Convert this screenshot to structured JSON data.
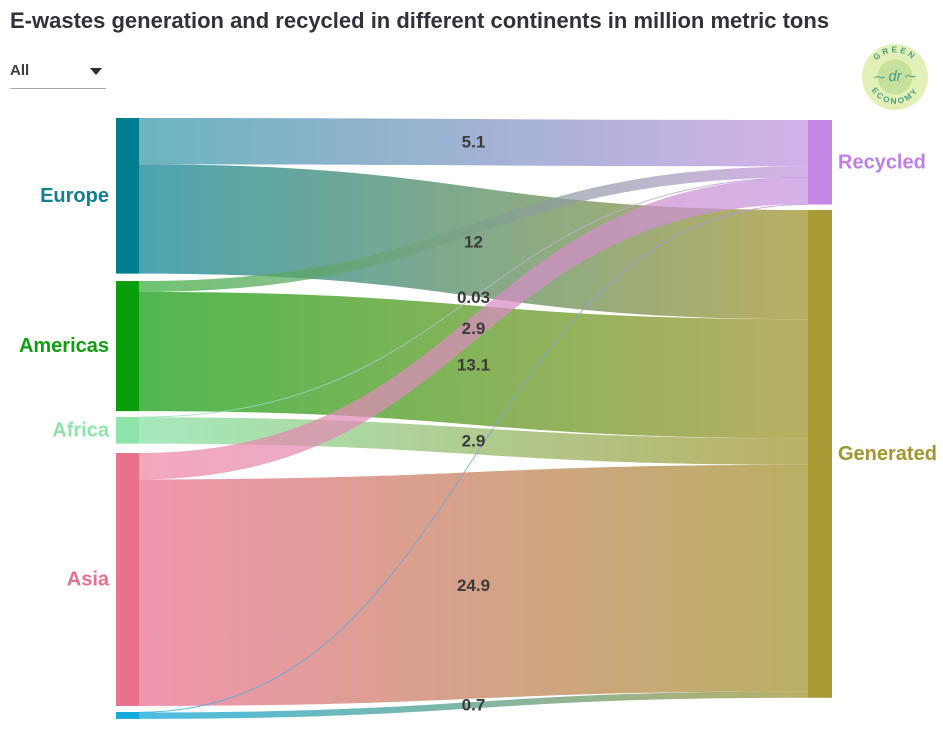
{
  "title": "E-wastes generation and recycled in different continents in million metric tons",
  "filter": {
    "selected": "All"
  },
  "logo": {
    "top_text": "GREEN",
    "bottom_text": "ECONOMY",
    "center_text": "dr"
  },
  "colors": {
    "title_text": "#31313a",
    "flow_label_text": "#3b3b3b",
    "background": "#ffffff"
  },
  "chart_data": {
    "type": "sankey",
    "title": "E-wastes generation and recycled in different continents in million metric tons",
    "unit": "million metric tons",
    "nodes": [
      {
        "id": "europe",
        "label": "Europe",
        "side": "left",
        "color": "#007d8e",
        "flow_color": "#3397a5",
        "label_color": "#14808f"
      },
      {
        "id": "americas",
        "label": "Americas",
        "side": "left",
        "color": "#0a9e0a",
        "flow_color": "#38ad38",
        "label_color": "#0f9e0f"
      },
      {
        "id": "africa",
        "label": "Africa",
        "side": "left",
        "color": "#8ee4a8",
        "flow_color": "#9ae6b4",
        "label_color": "#8ee4a8"
      },
      {
        "id": "asia",
        "label": "Asia",
        "side": "left",
        "color": "#e8718e",
        "flow_color": "#ee86a2",
        "label_color": "#e8718e"
      },
      {
        "id": "oceania",
        "label": "",
        "side": "left",
        "color": "#14aadc",
        "flow_color": "#30b4e0",
        "label_color": "#14aadc"
      },
      {
        "id": "recycled",
        "label": "Recycled",
        "side": "right",
        "color": "#c688e6",
        "flow_color": "#c493e0",
        "label_color": "#bf7fe8"
      },
      {
        "id": "generated",
        "label": "Generated",
        "side": "right",
        "color": "#a89b35",
        "flow_color": "#b0a44e",
        "label_color": "#a3962e"
      }
    ],
    "links": [
      {
        "source": "europe",
        "target": "recycled",
        "value": 5.1,
        "label": "5.1"
      },
      {
        "source": "europe",
        "target": "generated",
        "value": 12,
        "label": "12"
      },
      {
        "source": "americas",
        "target": "recycled",
        "value": 1.2,
        "label": ""
      },
      {
        "source": "americas",
        "target": "generated",
        "value": 13.1,
        "label": "13.1"
      },
      {
        "source": "africa",
        "target": "recycled",
        "value": 0.03,
        "label": "0.03"
      },
      {
        "source": "africa",
        "target": "generated",
        "value": 2.9,
        "label": "2.9"
      },
      {
        "source": "asia",
        "target": "recycled",
        "value": 2.9,
        "label": "2.9"
      },
      {
        "source": "asia",
        "target": "generated",
        "value": 24.9,
        "label": "24.9"
      },
      {
        "source": "oceania",
        "target": "recycled",
        "value": 0.06,
        "label": ""
      },
      {
        "source": "oceania",
        "target": "generated",
        "value": 0.7,
        "label": "0.7"
      }
    ]
  }
}
